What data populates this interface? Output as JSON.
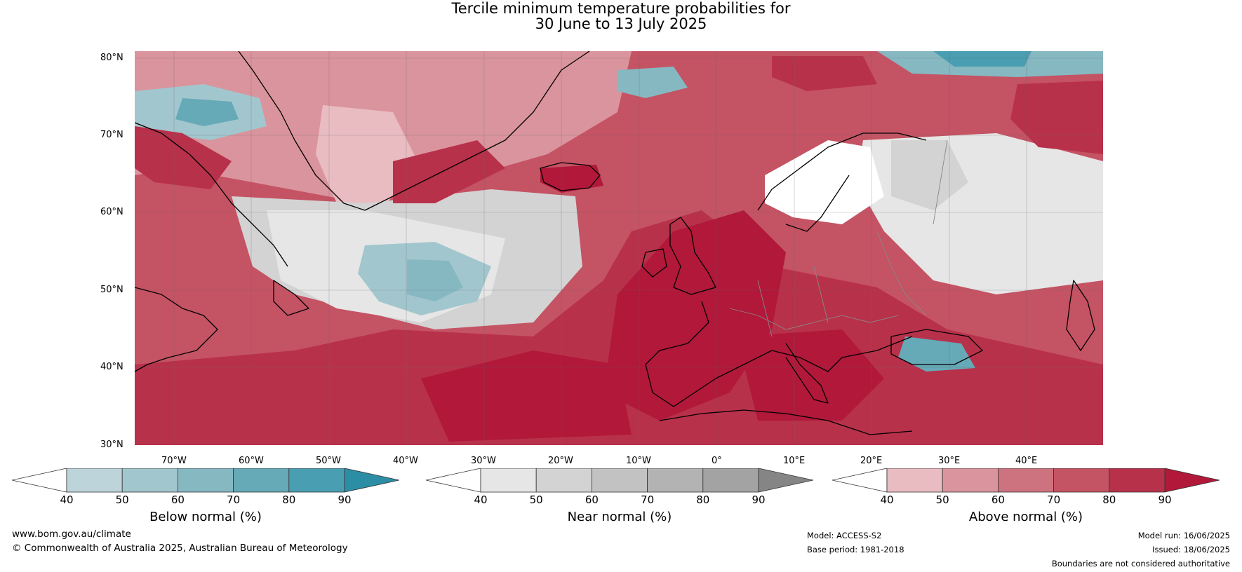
{
  "title_line1": "Tercile minimum temperature probabilities for",
  "title_line2": "30 June to 13 July 2025",
  "lat_ticks": [
    "80°N",
    "70°N",
    "60°N",
    "50°N",
    "40°N",
    "30°N"
  ],
  "lon_ticks": [
    "70°W",
    "60°W",
    "50°W",
    "40°W",
    "30°W",
    "20°W",
    "10°W",
    "0°",
    "10°E",
    "20°E",
    "30°E",
    "40°E"
  ],
  "colorbars": [
    {
      "label": "Below normal (%)",
      "ticks": [
        "40",
        "50",
        "60",
        "70",
        "80",
        "90"
      ],
      "colors": [
        "#ffffff",
        "#bed4db",
        "#a2c6cd",
        "#86b8c2",
        "#66a9b7",
        "#4a9eb1",
        "#2c8ea5"
      ]
    },
    {
      "label": "Near normal (%)",
      "ticks": [
        "40",
        "50",
        "60",
        "70",
        "80",
        "90"
      ],
      "colors": [
        "#ffffff",
        "#e6e6e6",
        "#d3d3d3",
        "#c2c2c2",
        "#b3b3b3",
        "#a3a3a3",
        "#858585"
      ]
    },
    {
      "label": "Above normal (%)",
      "ticks": [
        "40",
        "50",
        "60",
        "70",
        "80",
        "90"
      ],
      "colors": [
        "#ffffff",
        "#e9bcc2",
        "#da949d",
        "#cd737f",
        "#c45364",
        "#b8314a",
        "#b1183a"
      ]
    }
  ],
  "footer": {
    "url": "www.bom.gov.au/climate",
    "copyright": "© Commonwealth of Australia 2025, Australian Bureau of Meteorology",
    "model": "Model: ACCESS-S2",
    "base_period": "Base period: 1981-2018",
    "model_run": "Model run: 16/06/2025",
    "issued": "Issued: 18/06/2025",
    "disclaimer": "Boundaries are not considered authoritative"
  }
}
